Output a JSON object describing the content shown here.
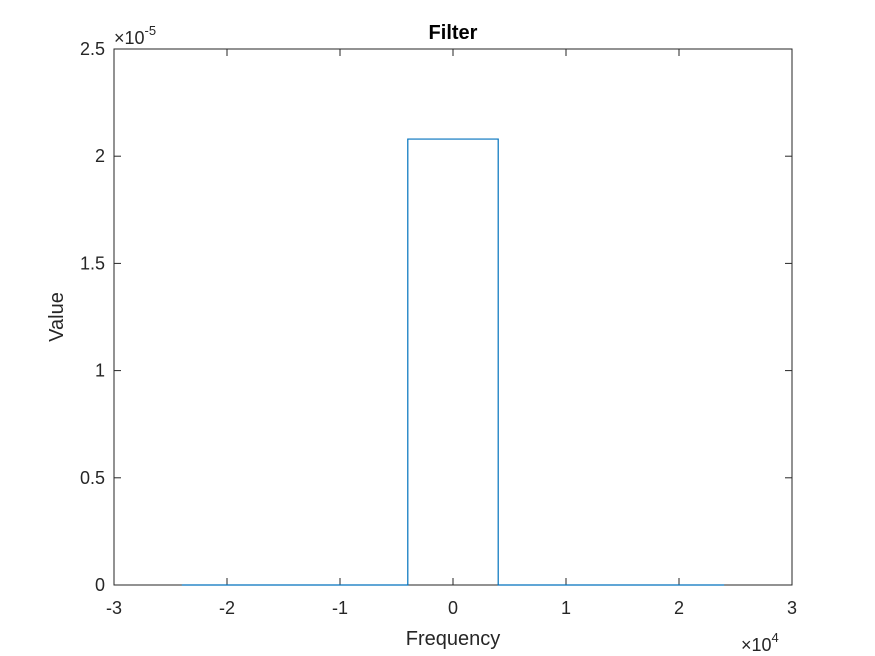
{
  "chart_data": {
    "type": "line",
    "title": "Filter",
    "xlabel": "Frequency",
    "ylabel": "Value",
    "xlim": [
      -30000,
      30000
    ],
    "ylim": [
      0,
      2.5e-05
    ],
    "x_ticks": [
      -30000,
      -20000,
      -10000,
      0,
      10000,
      20000,
      30000
    ],
    "y_ticks": [
      0,
      5e-06,
      1e-05,
      1.5e-05,
      2e-05,
      2.5e-05
    ],
    "x_tick_labels": [
      "-3",
      "-2",
      "-1",
      "0",
      "1",
      "2",
      "3"
    ],
    "y_tick_labels": [
      "0",
      "0.5",
      "1",
      "1.5",
      "2",
      "2.5"
    ],
    "x_exponent": {
      "base": "×10",
      "power": "4"
    },
    "y_exponent": {
      "base": "×10",
      "power": "-5"
    },
    "grid": false,
    "series": [
      {
        "color": "#0072BD",
        "x": [
          -24000,
          -4000,
          -4000,
          4000,
          4000,
          24000
        ],
        "y": [
          0,
          0,
          2.08e-05,
          2.08e-05,
          0,
          0
        ]
      }
    ]
  }
}
